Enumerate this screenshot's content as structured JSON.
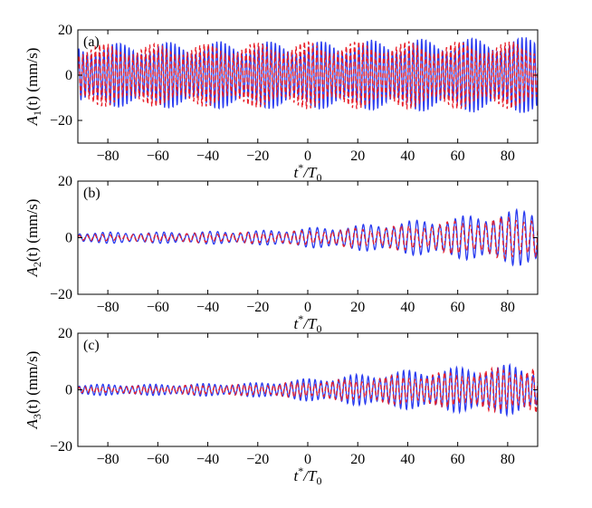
{
  "colors": {
    "blue_series": "#2a3cf0",
    "red_series": "#e8202a",
    "axis": "#000000"
  },
  "chart_data": [
    {
      "type": "line",
      "panel_label": "(a)",
      "ylabel": "A1(t) (mm/s)",
      "ylabel_parts": {
        "sym": "A",
        "sub": "1",
        "rest": "(t) (mm/s)"
      },
      "xlabel": "t*/T0",
      "xlabel_parts": {
        "t": "t",
        "sup": "*",
        "slash": "/T",
        "sub": "0"
      },
      "xlim": [
        -92,
        92
      ],
      "ylim": [
        -30,
        20
      ],
      "xticks": [
        -80,
        -60,
        -40,
        -20,
        0,
        20,
        40,
        60,
        80
      ],
      "xtick_labels": [
        "−80",
        "−60",
        "−40",
        "−20",
        "0",
        "20",
        "40",
        "60",
        "80"
      ],
      "yticks": [
        -20,
        0,
        20
      ],
      "ytick_labels": [
        "−20",
        "0",
        "20"
      ],
      "cycles": 110,
      "series": [
        {
          "style": "solid",
          "color": "#2a3cf0",
          "envelope": {
            "x": [
              -92,
              -40,
              0,
              40,
              92
            ],
            "amplitude": [
              14,
              15,
              15,
              16,
              17
            ]
          }
        },
        {
          "style": "dashed",
          "color": "#e8202a",
          "envelope": {
            "x": [
              -92,
              -40,
              0,
              40,
              92
            ],
            "amplitude": [
              14,
              14,
              15,
              15,
              15
            ]
          }
        }
      ]
    },
    {
      "type": "line",
      "panel_label": "(b)",
      "ylabel": "A2(t) (mm/s)",
      "ylabel_parts": {
        "sym": "A",
        "sub": "2",
        "rest": "(t) (mm/s)"
      },
      "xlabel": "t*/T0",
      "xlabel_parts": {
        "t": "t",
        "sup": "*",
        "slash": "/T",
        "sub": "0"
      },
      "xlim": [
        -92,
        92
      ],
      "ylim": [
        -20,
        20
      ],
      "xticks": [
        -80,
        -60,
        -40,
        -20,
        0,
        20,
        40,
        60,
        80
      ],
      "xtick_labels": [
        "−80",
        "−60",
        "−40",
        "−20",
        "0",
        "20",
        "40",
        "60",
        "80"
      ],
      "yticks": [
        -20,
        0,
        20
      ],
      "ytick_labels": [
        "−20",
        "0",
        "20"
      ],
      "cycles": 60,
      "series": [
        {
          "style": "solid",
          "color": "#2a3cf0",
          "envelope": {
            "x": [
              -92,
              -60,
              -20,
              0,
              20,
              40,
              60,
              80,
              92
            ],
            "amplitude": [
              2,
              2,
              2.5,
              3.5,
              4.5,
              6,
              7.5,
              9.5,
              11
            ]
          }
        },
        {
          "style": "dashed",
          "color": "#e8202a",
          "envelope": {
            "x": [
              -92,
              -60,
              -20,
              0,
              20,
              40,
              60,
              80,
              92
            ],
            "amplitude": [
              1,
              1.5,
              2,
              2.5,
              3.5,
              4.5,
              6,
              7.5,
              9
            ]
          }
        }
      ]
    },
    {
      "type": "line",
      "panel_label": "(c)",
      "ylabel": "A3(t) (mm/s)",
      "ylabel_parts": {
        "sym": "A",
        "sub": "3",
        "rest": "(t) (mm/s)"
      },
      "xlabel": "t*/T0",
      "xlabel_parts": {
        "t": "t",
        "sup": "*",
        "slash": "/T",
        "sub": "0"
      },
      "xlim": [
        -92,
        92
      ],
      "ylim": [
        -20,
        20
      ],
      "xticks": [
        -80,
        -60,
        -40,
        -20,
        0,
        20,
        40,
        60,
        80
      ],
      "xtick_labels": [
        "−80",
        "−60",
        "−40",
        "−20",
        "0",
        "20",
        "40",
        "60",
        "80"
      ],
      "yticks": [
        -20,
        0,
        20
      ],
      "ytick_labels": [
        "−20",
        "0",
        "20"
      ],
      "cycles": 78,
      "series": [
        {
          "style": "solid",
          "color": "#2a3cf0",
          "envelope": {
            "x": [
              -92,
              -60,
              -20,
              0,
              20,
              40,
              60,
              80,
              92
            ],
            "amplitude": [
              2,
              2,
              2.5,
              4,
              5.5,
              7,
              8,
              9,
              8
            ]
          }
        },
        {
          "style": "dashed",
          "color": "#e8202a",
          "envelope": {
            "x": [
              -92,
              -60,
              -20,
              0,
              20,
              40,
              60,
              80,
              92
            ],
            "amplitude": [
              1,
              1.5,
              2,
              3,
              4,
              5.5,
              6.5,
              8,
              9
            ]
          }
        }
      ]
    }
  ]
}
